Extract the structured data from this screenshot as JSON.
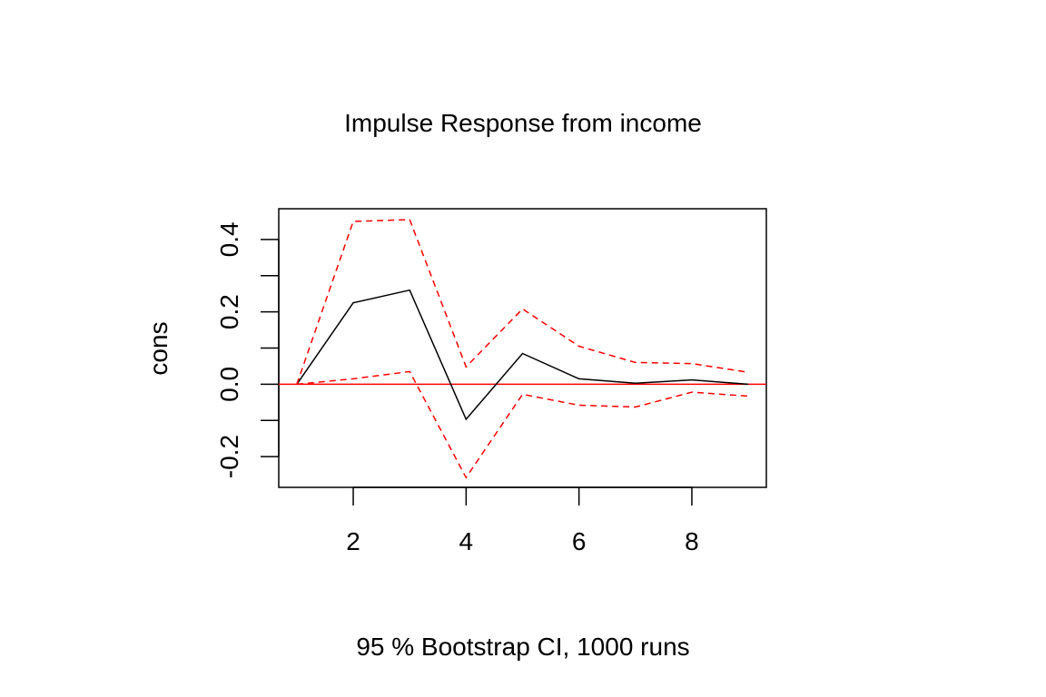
{
  "chart_data": {
    "type": "line",
    "title": "Impulse Response from income",
    "ylabel": "cons",
    "subtitle": "95 % Bootstrap CI,  1000 runs",
    "x": [
      1,
      2,
      3,
      4,
      5,
      6,
      7,
      8,
      9
    ],
    "xlim": [
      0.68,
      9.32
    ],
    "ylim": [
      -0.285,
      0.485
    ],
    "xticks": [
      2,
      4,
      6,
      8
    ],
    "xtick_labels": [
      "2",
      "4",
      "6",
      "8"
    ],
    "yticks": [
      -0.2,
      -0.1,
      0.0,
      0.1,
      0.2,
      0.3,
      0.4
    ],
    "ytick_labels": [
      "-0.2",
      "",
      "0.0",
      "",
      "0.2",
      "",
      "0.4"
    ],
    "series": [
      {
        "role": "response",
        "color": "#000000",
        "dash": "solid",
        "values": [
          0.0,
          0.225,
          0.26,
          -0.097,
          0.085,
          0.015,
          0.003,
          0.012,
          0.0
        ]
      },
      {
        "role": "upper",
        "color": "#ff0000",
        "dash": "dashed",
        "values": [
          0.0,
          0.45,
          0.455,
          0.048,
          0.208,
          0.105,
          0.06,
          0.057,
          0.033
        ]
      },
      {
        "role": "lower",
        "color": "#ff0000",
        "dash": "dashed",
        "values": [
          0.0,
          0.015,
          0.035,
          -0.258,
          -0.028,
          -0.058,
          -0.063,
          -0.022,
          -0.033
        ]
      }
    ],
    "reference_line": {
      "y": 0.0,
      "color": "#ff0000"
    },
    "grid": false,
    "legend": "none"
  }
}
